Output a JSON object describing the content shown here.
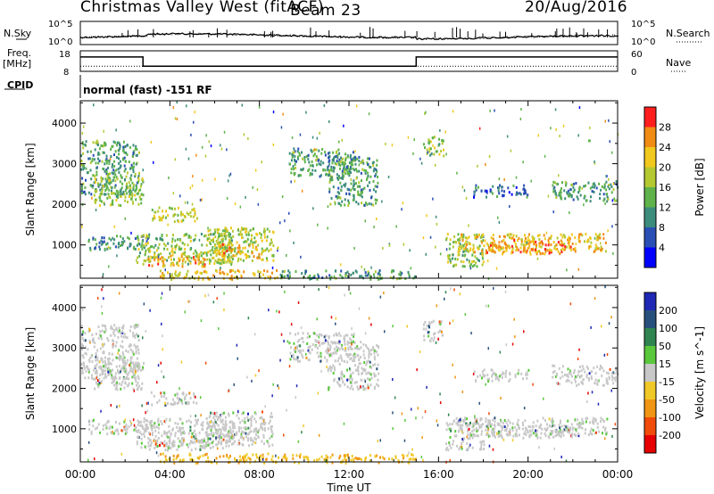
{
  "header": {
    "title": "Christmas Valley West (fitACF)",
    "beam": "Beam 23",
    "date": "20/Aug/2016"
  },
  "left_labels": {
    "nsky": "N.Sky",
    "freq": "Freq.",
    "freq_unit": "[MHz]",
    "cpid": "CPID"
  },
  "right_labels": {
    "nsearch": "N.Search",
    "nave": "Nave"
  },
  "control_program": "normal (fast) -151 RF",
  "chart_data": [
    {
      "type": "line",
      "panel": "noise",
      "left_axis": {
        "label": "N.Sky",
        "ticks": [
          "10^5",
          "10^0"
        ]
      },
      "right_axis": {
        "label": "N.Search",
        "ticks": [
          "10^5",
          "10^0"
        ]
      },
      "x_range_hours": [
        0,
        24
      ]
    },
    {
      "type": "line",
      "panel": "frequency",
      "left_axis": {
        "label": "Freq. [MHz]",
        "ticks": [
          18,
          8
        ],
        "range": [
          8,
          18
        ]
      },
      "right_axis": {
        "label": "Nave",
        "ticks": [
          60,
          0
        ],
        "range": [
          0,
          60
        ]
      },
      "frequency_steps": [
        {
          "start_hour": 0,
          "end_hour": 2.8,
          "value": 15
        },
        {
          "start_hour": 2.8,
          "end_hour": 15.0,
          "value": 10.5
        },
        {
          "start_hour": 15.0,
          "end_hour": 24,
          "value": 15
        }
      ],
      "nave_approx": 15
    },
    {
      "type": "heatmap",
      "panel": "power",
      "ylabel": "Slant Range [km]",
      "yticks": [
        1000,
        2000,
        3000,
        4000
      ],
      "ylim": [
        180,
        4550
      ],
      "colorbar": {
        "label": "Power [dB]",
        "ticks": [
          4,
          8,
          12,
          16,
          20,
          24,
          28
        ],
        "colors": [
          "#0000ff",
          "#2a4fb4",
          "#3c8c7c",
          "#5fb34a",
          "#b4c832",
          "#f0c81e",
          "#f08c14",
          "#ff1e1e"
        ]
      }
    },
    {
      "type": "heatmap",
      "panel": "velocity",
      "ylabel": "Slant Range [km]",
      "yticks": [
        1000,
        2000,
        3000,
        4000
      ],
      "ylim": [
        180,
        4550
      ],
      "colorbar": {
        "label": "Velocity [m s^-1]",
        "ticks": [
          200,
          100,
          50,
          15,
          -15,
          -50,
          -100,
          -200
        ],
        "colors": [
          "#1e28b4",
          "#28507c",
          "#2f8450",
          "#5ac83c",
          "#c8c8c8",
          "#f0c828",
          "#f09614",
          "#f04b0a",
          "#e60000"
        ]
      }
    }
  ],
  "xaxis": {
    "label": "Time UT",
    "ticks": [
      "00:00",
      "04:00",
      "08:00",
      "12:00",
      "16:00",
      "20:00",
      "00:00"
    ]
  },
  "echo_regions": [
    {
      "t0": 0.0,
      "t1": 2.6,
      "r0": 2250,
      "r1": 3600,
      "pow": 12,
      "vel": "low"
    },
    {
      "t0": 0.6,
      "t1": 2.8,
      "r0": 2000,
      "r1": 2800,
      "pow": 16,
      "vel": "low"
    },
    {
      "t0": 0.3,
      "t1": 3.2,
      "r0": 900,
      "r1": 1250,
      "pow": 10,
      "vel": "low"
    },
    {
      "t0": 2.5,
      "t1": 6.8,
      "r0": 550,
      "r1": 1300,
      "pow": 16,
      "vel": "low"
    },
    {
      "t0": 3.0,
      "t1": 5.6,
      "r0": 500,
      "r1": 800,
      "pow": 24,
      "vel": "low"
    },
    {
      "t0": 3.1,
      "t1": 5.2,
      "r0": 1600,
      "r1": 1950,
      "pow": 18,
      "vel": "low"
    },
    {
      "t0": 5.6,
      "t1": 8.6,
      "r0": 600,
      "r1": 1450,
      "pow": 18,
      "vel": "low"
    },
    {
      "t0": 6.0,
      "t1": 8.0,
      "r0": 700,
      "r1": 1050,
      "pow": 24,
      "vel": "low"
    },
    {
      "t0": 3.5,
      "t1": 8.8,
      "r0": 180,
      "r1": 420,
      "pow": 22,
      "vel": "neg"
    },
    {
      "t0": 8.8,
      "t1": 15.0,
      "r0": 180,
      "r1": 400,
      "pow": 12,
      "vel": "neg"
    },
    {
      "t0": 9.3,
      "t1": 12.2,
      "r0": 2700,
      "r1": 3400,
      "pow": 12,
      "vel": "low"
    },
    {
      "t0": 11.0,
      "t1": 13.3,
      "r0": 2000,
      "r1": 3200,
      "pow": 12,
      "vel": "low"
    },
    {
      "t0": 15.3,
      "t1": 16.2,
      "r0": 3200,
      "r1": 3700,
      "pow": 16,
      "vel": "low"
    },
    {
      "t0": 16.3,
      "t1": 18.0,
      "r0": 500,
      "r1": 1300,
      "pow": 16,
      "vel": "low"
    },
    {
      "t0": 16.8,
      "t1": 23.5,
      "r0": 850,
      "r1": 1300,
      "pow": 22,
      "vel": "low"
    },
    {
      "t0": 18.0,
      "t1": 22.0,
      "r0": 800,
      "r1": 1150,
      "pow": 26,
      "vel": "low"
    },
    {
      "t0": 21.0,
      "t1": 24.0,
      "r0": 2100,
      "r1": 2600,
      "pow": 12,
      "vel": "low"
    },
    {
      "t0": 17.5,
      "t1": 20.0,
      "r0": 2200,
      "r1": 2500,
      "pow": 8,
      "vel": "low"
    }
  ]
}
